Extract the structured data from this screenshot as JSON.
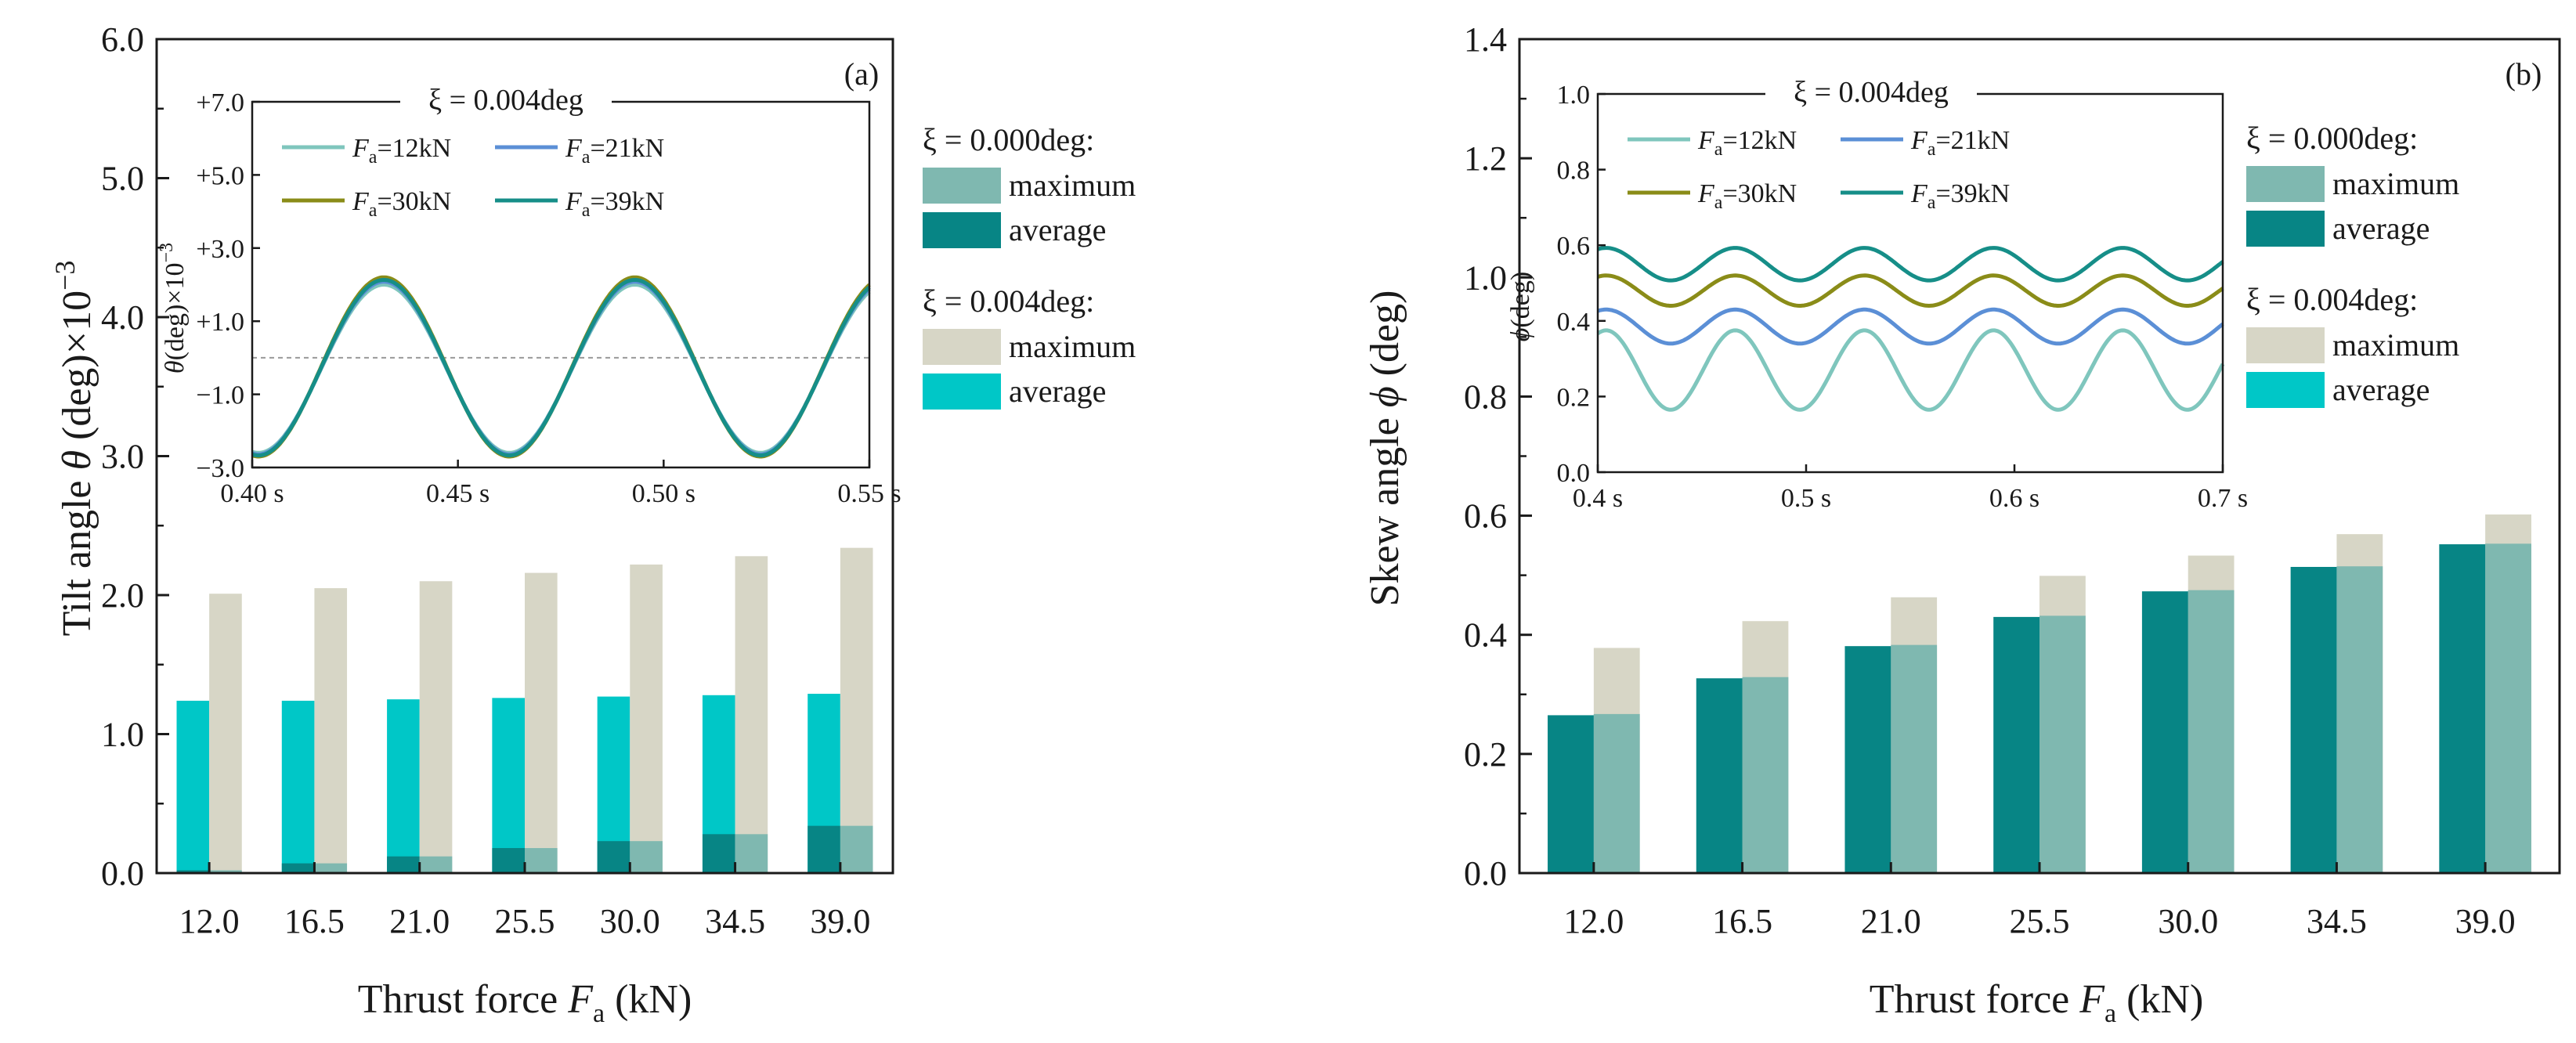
{
  "colors": {
    "avg000": "#078585",
    "max000": "#7fb8b0",
    "max004": "#d7d6c6",
    "avg004": "#00c7c7",
    "f12": "#7fc6bd",
    "f21": "#5b8fd6",
    "f30": "#8a8c18",
    "f39": "#168e88",
    "axis": "#1a1a1a",
    "grid_dash": "#999999"
  },
  "chart_data": [
    {
      "type": "bar",
      "panel_label": "(a)",
      "ylabel_prefix": "Tilt angle",
      "ylabel_symbol": "θ",
      "ylabel_suffix": " (deg)×10",
      "ylabel_exp": "−3",
      "xlabel_prefix": "Thrust force",
      "xlabel_symbol": "F",
      "xlabel_sub": "a",
      "xlabel_suffix": " (kN)",
      "categories": [
        "12.0",
        "16.5",
        "21.0",
        "25.5",
        "30.0",
        "34.5",
        "39.0"
      ],
      "ylim": [
        0,
        6
      ],
      "yticks": [
        "0.0",
        "1.0",
        "2.0",
        "3.0",
        "4.0",
        "5.0",
        "6.0"
      ],
      "legend_groups": [
        {
          "title": "ξ = 0.000deg:",
          "items": [
            {
              "label": "maximum",
              "color_key": "max000"
            },
            {
              "label": "average",
              "color_key": "avg000"
            }
          ]
        },
        {
          "title": "ξ = 0.004deg:",
          "items": [
            {
              "label": "maximum",
              "color_key": "max004"
            },
            {
              "label": "average",
              "color_key": "avg004"
            }
          ]
        }
      ],
      "series": [
        {
          "name": "ξ = 0.004deg: average",
          "color_key": "avg004",
          "values": [
            1.24,
            1.24,
            1.25,
            1.26,
            1.27,
            1.28,
            1.29
          ]
        },
        {
          "name": "ξ = 0.004deg: maximum",
          "color_key": "max004",
          "values": [
            2.01,
            2.05,
            2.1,
            2.16,
            2.22,
            2.28,
            2.34
          ]
        },
        {
          "name": "ξ = 0.000deg: average",
          "color_key": "avg000",
          "values": [
            0.02,
            0.07,
            0.12,
            0.18,
            0.23,
            0.28,
            0.34
          ]
        },
        {
          "name": "ξ = 0.000deg: maximum",
          "color_key": "max000",
          "values": [
            0.02,
            0.07,
            0.12,
            0.18,
            0.23,
            0.28,
            0.34
          ]
        }
      ],
      "inset": {
        "type": "line",
        "title": "ξ = 0.004deg",
        "ylabel_symbol": "θ",
        "ylabel_suffix": "(deg)×10",
        "ylabel_exp": "−3",
        "xlim": [
          0.4,
          0.55
        ],
        "ylim": [
          -3.0,
          7.0
        ],
        "xticks": [
          "0.40 s",
          "0.45 s",
          "0.50 s",
          "0.55 s"
        ],
        "yticks": [
          "−3.0",
          "−1.0",
          "+1.0",
          "+3.0",
          "+5.0",
          "+7.0"
        ],
        "reference_line_y": 0.0,
        "wave_period_s": 0.061,
        "wave_first_peak_s": 0.432,
        "series": [
          {
            "label_pre": "F",
            "label_sub": "a",
            "label_post": "=12kN",
            "color_key": "f12",
            "mean": -0.3,
            "amplitude": 2.3
          },
          {
            "label_pre": "F",
            "label_sub": "a",
            "label_post": "=21kN",
            "color_key": "f21",
            "mean": -0.28,
            "amplitude": 2.36
          },
          {
            "label_pre": "F",
            "label_sub": "a",
            "label_post": "=30kN",
            "color_key": "f30",
            "mean": -0.25,
            "amplitude": 2.45
          },
          {
            "label_pre": "F",
            "label_sub": "a",
            "label_post": "=39kN",
            "color_key": "f39",
            "mean": -0.27,
            "amplitude": 2.4
          }
        ]
      }
    },
    {
      "type": "bar",
      "panel_label": "(b)",
      "ylabel_prefix": "Skew angle",
      "ylabel_symbol": "ϕ",
      "ylabel_suffix": " (deg)",
      "ylabel_exp": "",
      "xlabel_prefix": "Thrust force",
      "xlabel_symbol": "F",
      "xlabel_sub": "a",
      "xlabel_suffix": " (kN)",
      "categories": [
        "12.0",
        "16.5",
        "21.0",
        "25.5",
        "30.0",
        "34.5",
        "39.0"
      ],
      "ylim": [
        0,
        1.4
      ],
      "yticks": [
        "0.0",
        "0.2",
        "0.4",
        "0.6",
        "0.8",
        "1.0",
        "1.2",
        "1.4"
      ],
      "legend_groups": [
        {
          "title": "ξ = 0.000deg:",
          "items": [
            {
              "label": "maximum",
              "color_key": "max000"
            },
            {
              "label": "average",
              "color_key": "avg000"
            }
          ]
        },
        {
          "title": "ξ = 0.004deg:",
          "items": [
            {
              "label": "maximum",
              "color_key": "max004"
            },
            {
              "label": "average",
              "color_key": "avg004"
            }
          ]
        }
      ],
      "series": [
        {
          "name": "ξ = 0.000deg: average",
          "color_key": "avg000",
          "values": [
            0.265,
            0.327,
            0.381,
            0.43,
            0.473,
            0.514,
            0.552
          ]
        },
        {
          "name": "ξ = 0.000deg: maximum",
          "color_key": "max000",
          "values": [
            0.267,
            0.329,
            0.383,
            0.432,
            0.475,
            0.515,
            0.553
          ]
        },
        {
          "name": "ξ = 0.004deg: maximum",
          "color_key": "max004",
          "values": [
            0.378,
            0.423,
            0.463,
            0.499,
            0.533,
            0.569,
            0.602
          ]
        }
      ],
      "inset": {
        "type": "line",
        "title": "ξ = 0.004deg",
        "ylabel_symbol": "ϕ",
        "ylabel_suffix": "(deg)",
        "ylabel_exp": "",
        "xlim": [
          0.4,
          0.7
        ],
        "ylim": [
          0.0,
          1.0
        ],
        "xticks": [
          "0.4 s",
          "0.5 s",
          "0.6 s",
          "0.7 s"
        ],
        "yticks": [
          "0.0",
          "0.2",
          "0.4",
          "0.6",
          "0.8",
          "1.0"
        ],
        "reference_line_y": null,
        "wave_period_s": 0.062,
        "wave_first_peak_s": 0.404,
        "series": [
          {
            "label_pre": "F",
            "label_sub": "a",
            "label_post": "=12kN",
            "color_key": "f12",
            "mean": 0.27,
            "amplitude": 0.105
          },
          {
            "label_pre": "F",
            "label_sub": "a",
            "label_post": "=21kN",
            "color_key": "f21",
            "mean": 0.385,
            "amplitude": 0.045
          },
          {
            "label_pre": "F",
            "label_sub": "a",
            "label_post": "=30kN",
            "color_key": "f30",
            "mean": 0.48,
            "amplitude": 0.04
          },
          {
            "label_pre": "F",
            "label_sub": "a",
            "label_post": "=39kN",
            "color_key": "f39",
            "mean": 0.55,
            "amplitude": 0.043
          }
        ]
      }
    }
  ]
}
